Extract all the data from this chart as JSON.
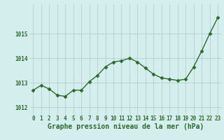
{
  "x": [
    0,
    1,
    2,
    3,
    4,
    5,
    6,
    7,
    8,
    9,
    10,
    11,
    12,
    13,
    14,
    15,
    16,
    17,
    18,
    19,
    20,
    21,
    22,
    23
  ],
  "y": [
    1012.7,
    1012.9,
    1012.75,
    1012.5,
    1012.45,
    1012.7,
    1012.7,
    1013.05,
    1013.3,
    1013.65,
    1013.85,
    1013.9,
    1014.0,
    1013.85,
    1013.6,
    1013.35,
    1013.2,
    1013.15,
    1013.1,
    1013.15,
    1013.65,
    1014.3,
    1015.0,
    1015.65
  ],
  "line_color": "#2d6a2d",
  "marker": "D",
  "marker_size": 2.5,
  "line_width": 1.0,
  "bg_color": "#d4eeed",
  "grid_color": "#b0c8c8",
  "xlabel": "Graphe pression niveau de la mer (hPa)",
  "xlabel_color": "#2d6a2d",
  "xlabel_fontsize": 7,
  "tick_color": "#2d6a2d",
  "tick_fontsize": 5.5,
  "yticks": [
    1012,
    1013,
    1014,
    1015
  ],
  "ylim": [
    1011.7,
    1016.2
  ],
  "xlim": [
    -0.5,
    23.5
  ]
}
